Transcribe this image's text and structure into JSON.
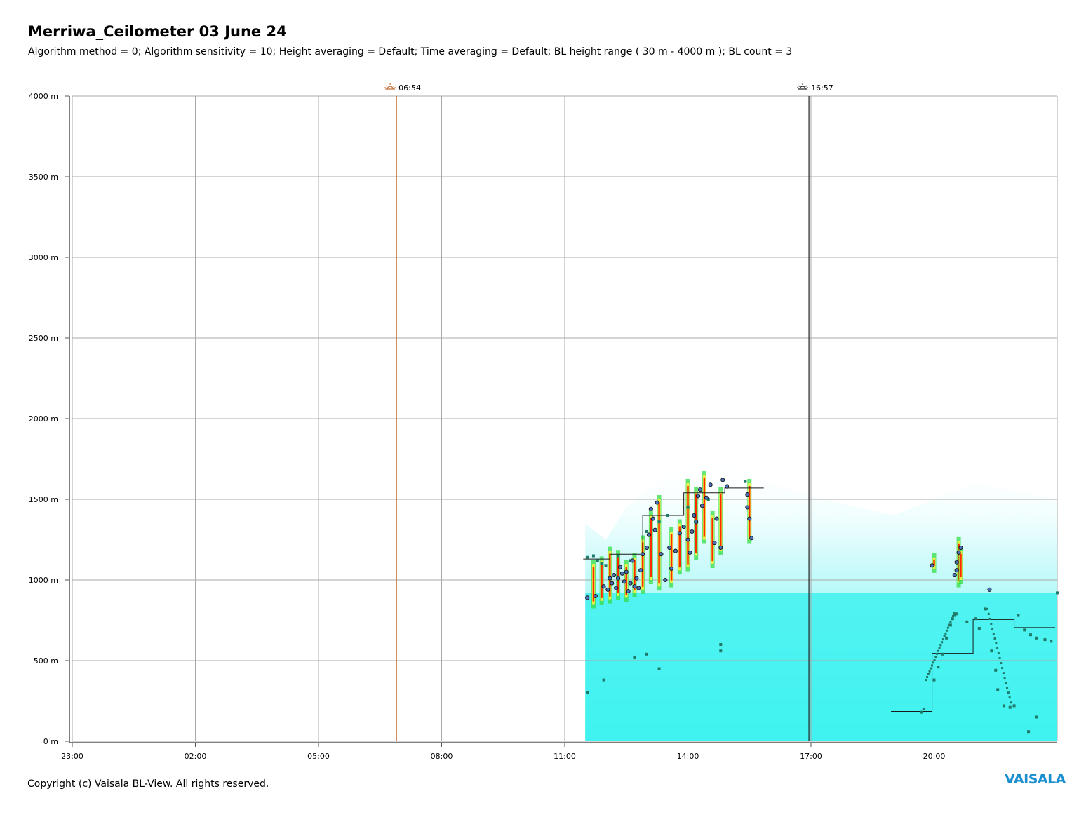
{
  "header": {
    "title": "Merriwa_Ceilometer 03 June 24",
    "subtitle": "Algorithm method = 0; Algorithm sensitivity = 10; Height averaging = Default; Time averaging = Default; BL height range ( 30 m - 4000 m ); BL count = 3"
  },
  "footer": {
    "copyright": "Copyright (c) Vaisala BL-View. All rights reserved.",
    "logo": "VAISALA"
  },
  "colors": {
    "backscatter_base": "#3ff2f0",
    "backscatter_fade": "#ccfafa",
    "gradient_high": "#ff2a00",
    "gradient_mid": "#ffee44",
    "gradient_low": "#33dd44",
    "bl_points": "#1f7a6a",
    "cloud_points": "#4d6fb8",
    "sunrise_line": "#c0682c",
    "sunset_line": "#222222",
    "grid": "#a8a8a8"
  },
  "chart_data": {
    "type": "scatter",
    "x_unit": "hours since 23:00",
    "xlim": [
      0,
      24
    ],
    "ylim": [
      0,
      4000
    ],
    "y_ticks": [
      {
        "v": 0,
        "label": "0 m"
      },
      {
        "v": 500,
        "label": "500 m"
      },
      {
        "v": 1000,
        "label": "1000 m"
      },
      {
        "v": 1500,
        "label": "1500 m"
      },
      {
        "v": 2000,
        "label": "2000 m"
      },
      {
        "v": 2500,
        "label": "2500 m"
      },
      {
        "v": 3000,
        "label": "3000 m"
      },
      {
        "v": 3500,
        "label": "3500 m"
      },
      {
        "v": 4000,
        "label": "4000 m"
      }
    ],
    "x_ticks": [
      {
        "v": 0,
        "label": "23:00"
      },
      {
        "v": 3,
        "label": "02:00"
      },
      {
        "v": 6,
        "label": "05:00"
      },
      {
        "v": 9,
        "label": "08:00"
      },
      {
        "v": 12,
        "label": "11:00"
      },
      {
        "v": 15,
        "label": "14:00"
      },
      {
        "v": 18,
        "label": "17:00"
      },
      {
        "v": 21,
        "label": "20:00"
      }
    ],
    "grid": true,
    "sunrise": {
      "x": 7.9,
      "label": "06:54",
      "icon": "sunrise-icon"
    },
    "sunset": {
      "x": 17.95,
      "label": "16:57",
      "icon": "sunset-icon"
    },
    "backscatter_start": 12.5,
    "backscatter_profile": [
      [
        12.5,
        1350
      ],
      [
        13.0,
        1250
      ],
      [
        13.5,
        1450
      ],
      [
        14.0,
        1550
      ],
      [
        14.5,
        1650
      ],
      [
        15.0,
        1700
      ],
      [
        15.5,
        1750
      ],
      [
        16.0,
        1720
      ],
      [
        16.5,
        1650
      ],
      [
        17.0,
        1600
      ],
      [
        17.5,
        1560
      ],
      [
        18.0,
        1520
      ],
      [
        19.0,
        1460
      ],
      [
        20.0,
        1400
      ],
      [
        21.0,
        1500
      ],
      [
        22.0,
        1600
      ],
      [
        23.0,
        1550
      ],
      [
        24.0,
        1500
      ]
    ],
    "bl_step_line": [
      [
        12.45,
        1130
      ],
      [
        13.1,
        1130
      ],
      [
        13.1,
        1160
      ],
      [
        13.9,
        1160
      ],
      [
        13.9,
        1400
      ],
      [
        14.9,
        1400
      ],
      [
        14.9,
        1540
      ],
      [
        15.9,
        1540
      ],
      [
        15.9,
        1570
      ],
      [
        16.85,
        1570
      ]
    ],
    "bl_step_line_evening": [
      [
        19.95,
        185
      ],
      [
        20.95,
        185
      ],
      [
        20.95,
        545
      ],
      [
        21.95,
        545
      ],
      [
        21.95,
        755
      ],
      [
        22.95,
        755
      ],
      [
        22.95,
        705
      ],
      [
        23.95,
        705
      ]
    ],
    "bl_points": [
      [
        12.55,
        1140
      ],
      [
        12.7,
        1150
      ],
      [
        12.8,
        1120
      ],
      [
        12.9,
        1100
      ],
      [
        13.0,
        1090
      ],
      [
        13.3,
        1150
      ],
      [
        13.6,
        1120
      ],
      [
        14.0,
        1300
      ],
      [
        14.3,
        1360
      ],
      [
        14.5,
        1400
      ],
      [
        15.0,
        1450
      ],
      [
        15.5,
        1500
      ],
      [
        16.4,
        1610
      ],
      [
        20.7,
        180
      ],
      [
        20.75,
        200
      ],
      [
        21.0,
        380
      ],
      [
        21.1,
        460
      ],
      [
        21.2,
        540
      ],
      [
        21.3,
        640
      ],
      [
        21.4,
        720
      ],
      [
        21.45,
        760
      ],
      [
        21.5,
        780
      ],
      [
        21.55,
        790
      ],
      [
        21.8,
        740
      ],
      [
        22.0,
        760
      ],
      [
        22.1,
        700
      ],
      [
        22.25,
        820
      ],
      [
        22.4,
        560
      ],
      [
        22.5,
        440
      ],
      [
        22.55,
        320
      ],
      [
        22.7,
        220
      ],
      [
        22.85,
        210
      ],
      [
        22.95,
        220
      ],
      [
        23.05,
        780
      ],
      [
        23.2,
        690
      ],
      [
        23.35,
        660
      ],
      [
        23.5,
        640
      ],
      [
        23.7,
        630
      ],
      [
        23.85,
        620
      ],
      [
        23.5,
        150
      ],
      [
        24.0,
        920
      ],
      [
        12.55,
        300
      ],
      [
        12.95,
        380
      ],
      [
        13.7,
        520
      ],
      [
        14.0,
        540
      ],
      [
        14.3,
        450
      ],
      [
        15.8,
        600
      ],
      [
        15.8,
        560
      ],
      [
        23.3,
        60
      ]
    ],
    "cloud_points": [
      [
        12.55,
        890
      ],
      [
        12.75,
        900
      ],
      [
        12.95,
        960
      ],
      [
        13.05,
        940
      ],
      [
        13.1,
        1010
      ],
      [
        13.15,
        980
      ],
      [
        13.2,
        1030
      ],
      [
        13.25,
        950
      ],
      [
        13.3,
        1010
      ],
      [
        13.35,
        1080
      ],
      [
        13.4,
        1040
      ],
      [
        13.45,
        990
      ],
      [
        13.5,
        1050
      ],
      [
        13.55,
        930
      ],
      [
        13.6,
        980
      ],
      [
        13.65,
        1120
      ],
      [
        13.7,
        960
      ],
      [
        13.75,
        1010
      ],
      [
        13.8,
        950
      ],
      [
        13.85,
        1060
      ],
      [
        13.9,
        1160
      ],
      [
        14.0,
        1200
      ],
      [
        14.05,
        1280
      ],
      [
        14.1,
        1440
      ],
      [
        14.15,
        1380
      ],
      [
        14.2,
        1310
      ],
      [
        14.25,
        1480
      ],
      [
        14.35,
        1160
      ],
      [
        14.45,
        1000
      ],
      [
        14.55,
        1200
      ],
      [
        14.6,
        1070
      ],
      [
        14.7,
        1180
      ],
      [
        14.8,
        1290
      ],
      [
        14.9,
        1330
      ],
      [
        15.0,
        1250
      ],
      [
        15.05,
        1170
      ],
      [
        15.1,
        1300
      ],
      [
        15.15,
        1400
      ],
      [
        15.2,
        1360
      ],
      [
        15.25,
        1520
      ],
      [
        15.3,
        1560
      ],
      [
        15.35,
        1460
      ],
      [
        15.45,
        1510
      ],
      [
        15.55,
        1590
      ],
      [
        15.65,
        1230
      ],
      [
        15.7,
        1380
      ],
      [
        15.8,
        1200
      ],
      [
        15.85,
        1620
      ],
      [
        15.95,
        1580
      ],
      [
        16.45,
        1450
      ],
      [
        16.5,
        1380
      ],
      [
        16.55,
        1260
      ],
      [
        16.45,
        1530
      ],
      [
        20.95,
        1090
      ],
      [
        21.5,
        1030
      ],
      [
        21.55,
        1110
      ],
      [
        21.6,
        1170
      ],
      [
        21.65,
        1200
      ],
      [
        21.55,
        1060
      ],
      [
        22.35,
        940
      ]
    ],
    "gradient_streaks": [
      [
        12.7,
        850,
        1100
      ],
      [
        12.9,
        870,
        1120
      ],
      [
        13.1,
        880,
        1180
      ],
      [
        13.3,
        900,
        1160
      ],
      [
        13.5,
        890,
        1100
      ],
      [
        13.7,
        920,
        1140
      ],
      [
        13.9,
        940,
        1250
      ],
      [
        14.1,
        1000,
        1400
      ],
      [
        14.3,
        960,
        1500
      ],
      [
        14.6,
        980,
        1300
      ],
      [
        14.8,
        1060,
        1350
      ],
      [
        15.0,
        1080,
        1600
      ],
      [
        15.2,
        1150,
        1550
      ],
      [
        15.4,
        1250,
        1650
      ],
      [
        15.6,
        1100,
        1400
      ],
      [
        15.8,
        1180,
        1550
      ],
      [
        16.5,
        1250,
        1600
      ],
      [
        21.6,
        980,
        1240
      ],
      [
        21.65,
        1000,
        1180
      ],
      [
        21.0,
        1070,
        1140
      ]
    ]
  }
}
